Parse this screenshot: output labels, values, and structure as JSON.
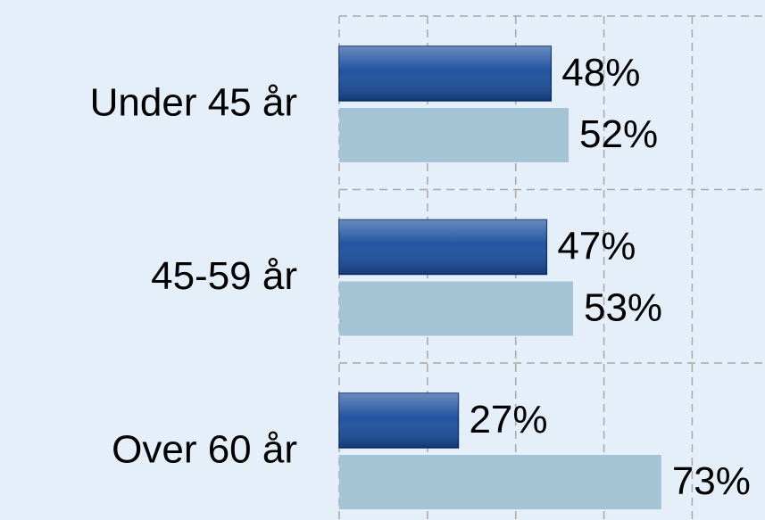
{
  "chart_data": {
    "type": "barh",
    "categories": [
      "Under 45 år",
      "45-59 år",
      "Over 60 år"
    ],
    "series": [
      {
        "color": "#174c9c",
        "values": [
          48,
          47,
          27
        ],
        "value_labels": [
          "48%",
          "47%",
          "27%"
        ]
      },
      {
        "color": "#a4c4d5",
        "values": [
          52,
          53,
          73
        ],
        "value_labels": [
          "52%",
          "53%",
          "73%"
        ]
      }
    ],
    "xlim": [
      0,
      96.5
    ],
    "xticks": [
      0,
      20,
      40,
      60,
      80
    ],
    "grid": true
  }
}
